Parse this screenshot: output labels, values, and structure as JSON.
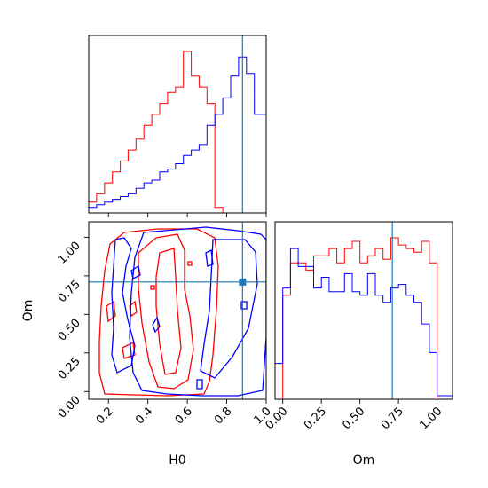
{
  "chart_data": {
    "type": "corner",
    "parameters": [
      "H0",
      "Om"
    ],
    "truth": {
      "H0": 0.88,
      "Om": 0.71
    },
    "truth_color": "#1f77b4",
    "series": [
      {
        "color": "#ff0000",
        "H0_hist": {
          "bin_edges": [
            0.1,
            0.14,
            0.18,
            0.22,
            0.26,
            0.3,
            0.34,
            0.38,
            0.42,
            0.46,
            0.5,
            0.54,
            0.58,
            0.62,
            0.66,
            0.7,
            0.74,
            0.78
          ],
          "counts": [
            4,
            7,
            11,
            15,
            19,
            23,
            27,
            32,
            36,
            40,
            44,
            46,
            59,
            50,
            46,
            40,
            2
          ]
        },
        "Om_hist": {
          "bin_edges": [
            0.0,
            0.05,
            0.1,
            0.15,
            0.2,
            0.25,
            0.3,
            0.35,
            0.4,
            0.45,
            0.5,
            0.55,
            0.6,
            0.65,
            0.7,
            0.75,
            0.8,
            0.85,
            0.9,
            0.95,
            1.0
          ],
          "counts": [
            29,
            38,
            38,
            36,
            40,
            40,
            42,
            38,
            42,
            44,
            38,
            40,
            42,
            39,
            45,
            43,
            42,
            41,
            44,
            38
          ]
        }
      },
      {
        "color": "#0000ff",
        "H0_hist": {
          "bin_edges": [
            0.1,
            0.14,
            0.18,
            0.22,
            0.26,
            0.3,
            0.34,
            0.38,
            0.42,
            0.46,
            0.5,
            0.54,
            0.58,
            0.62,
            0.66,
            0.7,
            0.74,
            0.78,
            0.82,
            0.86,
            0.9,
            0.94,
            1.0
          ],
          "counts": [
            2,
            3,
            4,
            5,
            6,
            7,
            9,
            11,
            12,
            15,
            16,
            18,
            21,
            23,
            25,
            32,
            36,
            42,
            50,
            57,
            51,
            36,
            14
          ]
        },
        "Om_hist": {
          "bin_edges": [
            -0.05,
            0.0,
            0.05,
            0.1,
            0.15,
            0.2,
            0.25,
            0.3,
            0.35,
            0.4,
            0.45,
            0.5,
            0.55,
            0.6,
            0.65,
            0.7,
            0.75,
            0.8,
            0.85,
            0.9,
            0.95,
            1.0,
            1.05,
            1.1
          ],
          "counts": [
            10,
            31,
            42,
            37,
            37,
            31,
            34,
            30,
            30,
            35,
            30,
            29,
            35,
            29,
            27,
            31,
            32,
            29,
            27,
            21,
            13,
            1,
            1
          ]
        }
      }
    ],
    "axes": {
      "H0": {
        "label": "H0",
        "range": [
          0.1,
          1.0
        ],
        "ticks": [
          0.2,
          0.4,
          0.6,
          0.8,
          1.0
        ],
        "tick_labels": [
          "0.2",
          "0.4",
          "0.6",
          "0.8",
          "1.0"
        ]
      },
      "Om": {
        "label": "Om",
        "range": [
          -0.05,
          1.1
        ],
        "ticks": [
          0.0,
          0.25,
          0.5,
          0.75,
          1.0
        ],
        "tick_labels": [
          "0.00",
          "0.25",
          "0.50",
          "0.75",
          "1.00"
        ]
      }
    },
    "grid": false
  }
}
